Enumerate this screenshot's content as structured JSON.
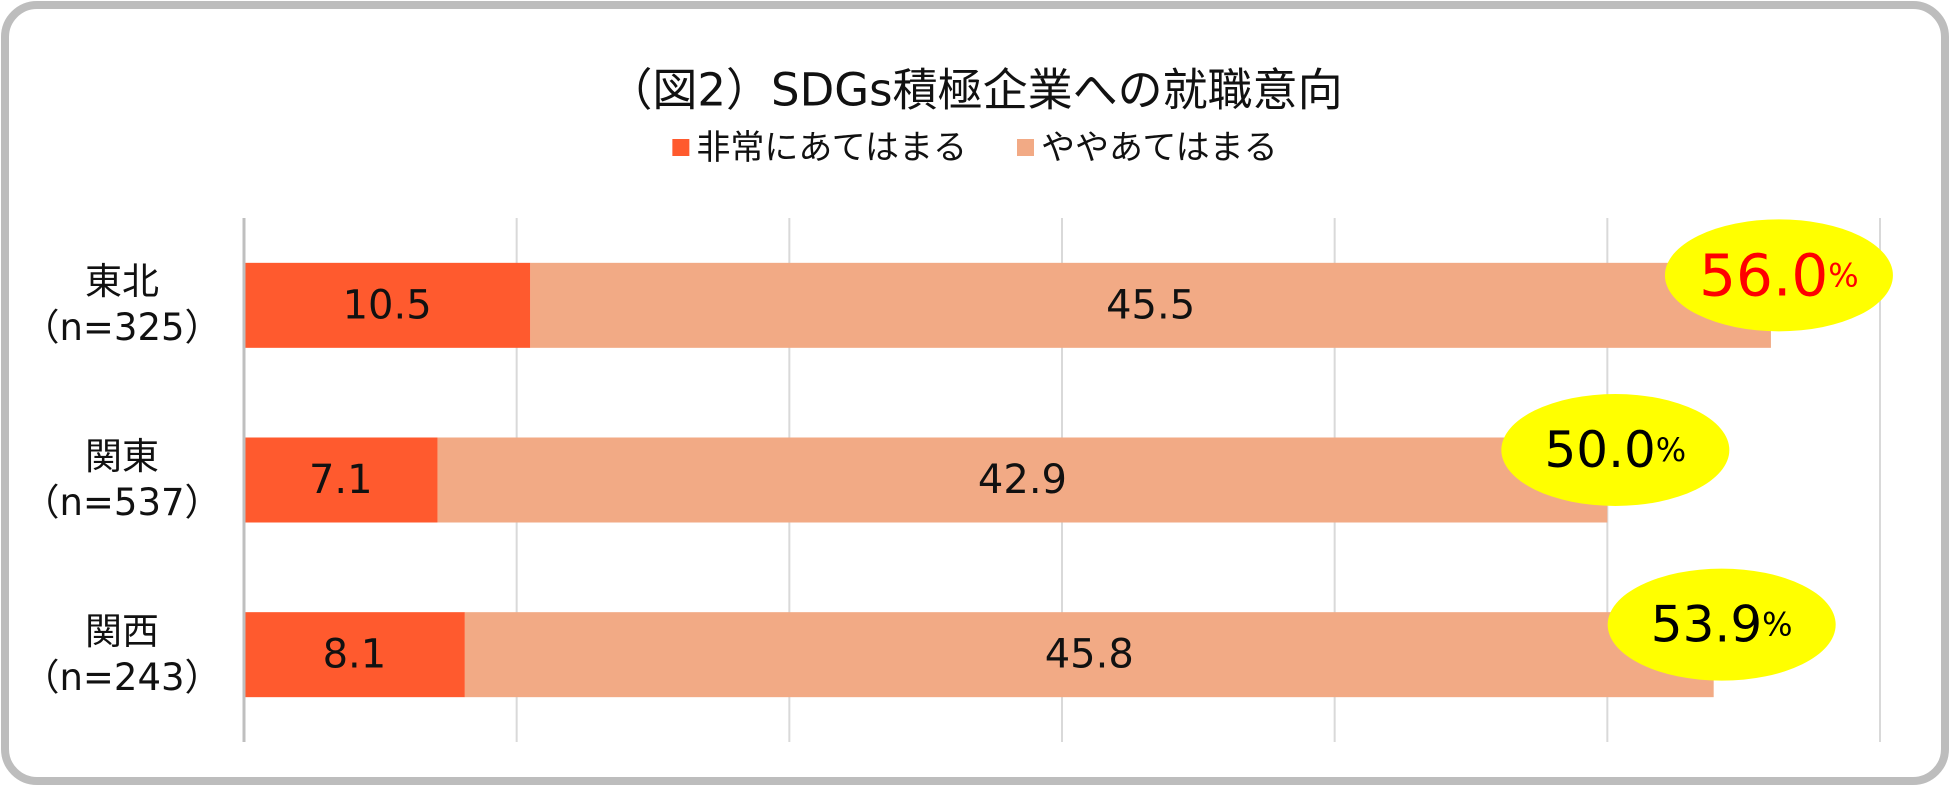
{
  "chart_data": {
    "type": "stacked-bar-horizontal",
    "title": "（図2）SDGs積極企業への就職意向",
    "categories": [
      "東北\n（n=325）",
      "関東\n（n=537）",
      "関西\n（n=243）"
    ],
    "series": [
      {
        "name": "非常にあてはまる",
        "color": "#ff5a2e",
        "values": [
          10.5,
          7.1,
          8.1
        ]
      },
      {
        "name": "ややあてはまる",
        "color": "#f2aa85",
        "values": [
          45.5,
          42.9,
          45.8
        ]
      }
    ],
    "totals": [
      56.0,
      50.0,
      53.9
    ],
    "total_labels": [
      "56.0",
      "50.0",
      "53.9"
    ],
    "total_unit": "%",
    "total_label_colors": [
      "#ff0000",
      "#000000",
      "#000000"
    ],
    "total_badge_color": "#ffff00",
    "xlim": [
      0,
      60
    ],
    "xticks": [
      0,
      10,
      20,
      30,
      40,
      50,
      60
    ],
    "grid": true
  }
}
